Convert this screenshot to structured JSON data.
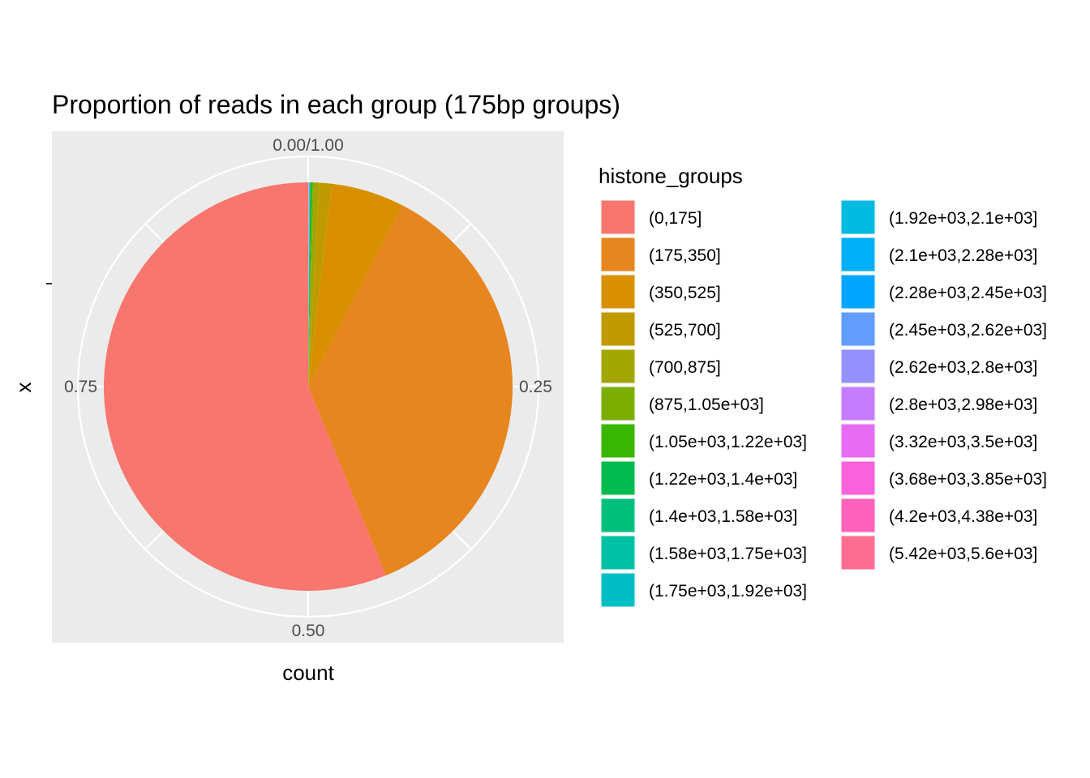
{
  "chart_data": {
    "type": "pie",
    "title": "Proportion of reads in each group (175bp groups)",
    "xlabel": "count",
    "ylabel": "x",
    "theta_ticks": [
      "0.00/1.00",
      "0.25",
      "0.50",
      "0.75"
    ],
    "theta_tick_values": [
      0,
      0.25,
      0.5,
      0.75
    ],
    "grid": true,
    "legend": {
      "title": "histone_groups",
      "placement": "right",
      "columns": 2
    },
    "slices": [
      {
        "label": "(0,175]",
        "value": 0.563,
        "color": "#F8766D"
      },
      {
        "label": "(175,350]",
        "value": 0.362,
        "color": "#E7851E"
      },
      {
        "label": "(350,525]",
        "value": 0.058,
        "color": "#D89000"
      },
      {
        "label": "(525,700]",
        "value": 0.01,
        "color": "#C09B00"
      },
      {
        "label": "(700,875]",
        "value": 0.004,
        "color": "#A3A500"
      },
      {
        "label": "(875,1.05e+03]",
        "value": 0.001,
        "color": "#7CAE00"
      },
      {
        "label": "(1.05e+03,1.22e+03]",
        "value": 0.001,
        "color": "#39B600"
      },
      {
        "label": "(1.22e+03,1.4e+03]",
        "value": 0.001,
        "color": "#00BB4E"
      },
      {
        "label": "(1.4e+03,1.58e+03]",
        "value": 0.0002,
        "color": "#00BF7D"
      },
      {
        "label": "(1.58e+03,1.75e+03]",
        "value": 0.0002,
        "color": "#00C1A3"
      },
      {
        "label": "(1.75e+03,1.92e+03]",
        "value": 0.0001,
        "color": "#00BFC4"
      },
      {
        "label": "(1.92e+03,2.1e+03]",
        "value": 0.0001,
        "color": "#00BAE0"
      },
      {
        "label": "(2.1e+03,2.28e+03]",
        "value": 0.0001,
        "color": "#00B0F6"
      },
      {
        "label": "(2.28e+03,2.45e+03]",
        "value": 0.0001,
        "color": "#00A5FF"
      },
      {
        "label": "(2.45e+03,2.62e+03]",
        "value": 0.0001,
        "color": "#619CFF"
      },
      {
        "label": "(2.62e+03,2.8e+03]",
        "value": 0.0001,
        "color": "#9590FF"
      },
      {
        "label": "(2.8e+03,2.98e+03]",
        "value": 0.0001,
        "color": "#C77CFF"
      },
      {
        "label": "(3.32e+03,3.5e+03]",
        "value": 0.0001,
        "color": "#E76BF3"
      },
      {
        "label": "(3.68e+03,3.85e+03]",
        "value": 0.0001,
        "color": "#FA62DB"
      },
      {
        "label": "(4.2e+03,4.38e+03]",
        "value": 0.0001,
        "color": "#FF62BC"
      },
      {
        "label": "(5.42e+03,5.6e+03]",
        "value": 0.0001,
        "color": "#FF6C91"
      }
    ]
  }
}
